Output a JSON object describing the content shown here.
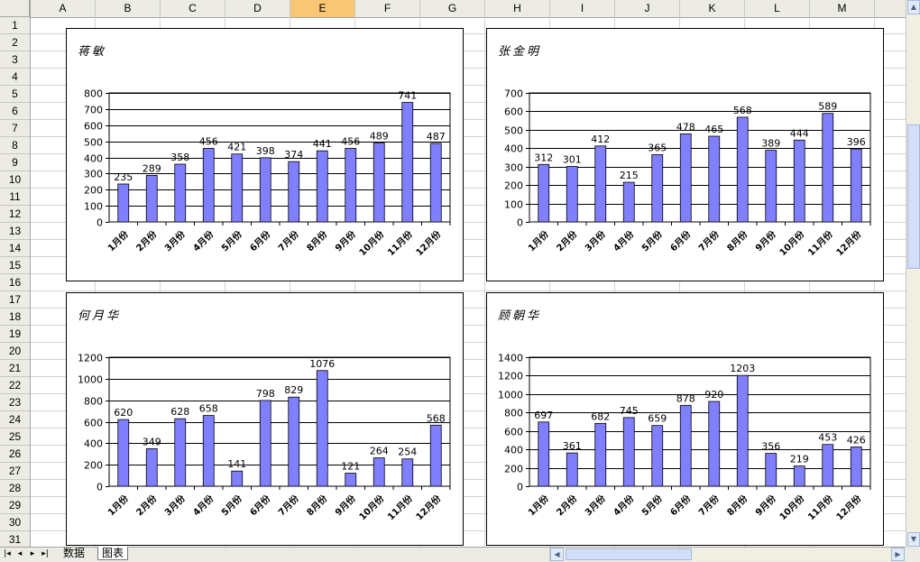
{
  "columns": [
    "A",
    "B",
    "C",
    "D",
    "E",
    "F",
    "G",
    "H",
    "I",
    "J",
    "K",
    "L",
    "M"
  ],
  "selected_column": "E",
  "rows": [
    "1",
    "2",
    "3",
    "4",
    "5",
    "6",
    "7",
    "8",
    "9",
    "10",
    "11",
    "12",
    "13",
    "14",
    "15",
    "16",
    "17",
    "18",
    "19",
    "20",
    "21",
    "22",
    "23",
    "24",
    "25",
    "26",
    "27",
    "28",
    "29",
    "30",
    "31"
  ],
  "sheet_tabs": [
    {
      "label": "数据",
      "active": false
    },
    {
      "label": "图表",
      "active": true
    }
  ],
  "colors": {
    "bar": "#8080ff",
    "bar_stroke": "#000000",
    "grid": "#000000"
  },
  "chart_data": [
    {
      "type": "bar",
      "title": "蒋敏",
      "categories": [
        "1月份",
        "2月份",
        "3月份",
        "4月份",
        "5月份",
        "6月份",
        "7月份",
        "8月份",
        "9月份",
        "10月份",
        "11月份",
        "12月份"
      ],
      "values": [
        235,
        289,
        358,
        456,
        421,
        398,
        374,
        441,
        456,
        489,
        741,
        487
      ],
      "ylim": [
        0,
        800
      ],
      "yticks": [
        "0",
        "100",
        "200",
        "300",
        "400",
        "500",
        "600",
        "700",
        "800"
      ],
      "ytick_values": [
        0,
        100,
        200,
        300,
        400,
        500,
        600,
        700,
        800
      ],
      "xlabel": "",
      "ylabel": "",
      "grid": true,
      "legend": "none"
    },
    {
      "type": "bar",
      "title": "张金明",
      "categories": [
        "1月份",
        "2月份",
        "3月份",
        "4月份",
        "5月份",
        "6月份",
        "7月份",
        "8月份",
        "9月份",
        "10月份",
        "11月份",
        "12月份"
      ],
      "values": [
        312,
        301,
        412,
        215,
        365,
        478,
        465,
        568,
        389,
        444,
        589,
        396
      ],
      "ylim": [
        0,
        700
      ],
      "yticks": [
        "0",
        "100",
        "200",
        "300",
        "400",
        "500",
        "600",
        "700"
      ],
      "ytick_values": [
        0,
        100,
        200,
        300,
        400,
        500,
        600,
        700
      ],
      "xlabel": "",
      "ylabel": "",
      "grid": true,
      "legend": "none"
    },
    {
      "type": "bar",
      "title": "何月华",
      "categories": [
        "1月份",
        "2月份",
        "3月份",
        "4月份",
        "5月份",
        "6月份",
        "7月份",
        "8月份",
        "9月份",
        "10月份",
        "11月份",
        "12月份"
      ],
      "values": [
        620,
        349,
        628,
        658,
        141,
        798,
        829,
        1076,
        121,
        264,
        254,
        568
      ],
      "ylim": [
        0,
        1200
      ],
      "yticks": [
        "0",
        "200",
        "400",
        "600",
        "800",
        "1000",
        "1200"
      ],
      "ytick_values": [
        0,
        200,
        400,
        600,
        800,
        1000,
        1200
      ],
      "xlabel": "",
      "ylabel": "",
      "grid": true,
      "legend": "none"
    },
    {
      "type": "bar",
      "title": "顾朝华",
      "categories": [
        "1月份",
        "2月份",
        "3月份",
        "4月份",
        "5月份",
        "6月份",
        "7月份",
        "8月份",
        "9月份",
        "10月份",
        "11月份",
        "12月份"
      ],
      "values": [
        697,
        361,
        682,
        745,
        659,
        878,
        920,
        1203,
        356,
        219,
        453,
        426
      ],
      "ylim": [
        0,
        1400
      ],
      "yticks": [
        "0",
        "200",
        "400",
        "600",
        "800",
        "1000",
        "1200",
        "1400"
      ],
      "ytick_values": [
        0,
        200,
        400,
        600,
        800,
        1000,
        1200,
        1400
      ],
      "xlabel": "",
      "ylabel": "",
      "grid": true,
      "legend": "none"
    }
  ]
}
